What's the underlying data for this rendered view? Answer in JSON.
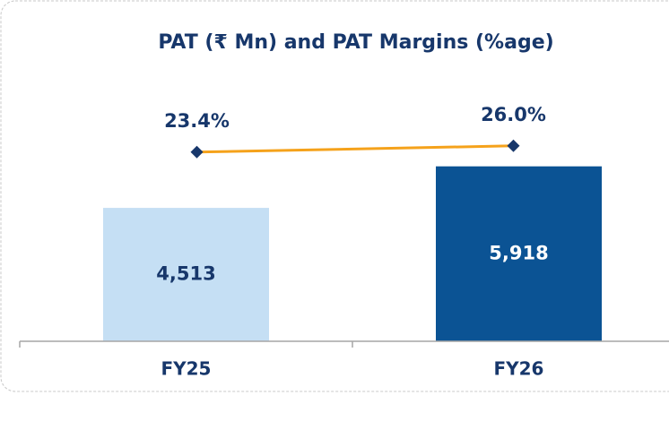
{
  "chart_data": {
    "type": "combo",
    "title": "PAT (₹ Mn) and PAT Margins (%age)",
    "categories": [
      "FY25",
      "FY26"
    ],
    "ylim": [
      0,
      8000
    ],
    "y2lim": [
      -55,
      43
    ],
    "series": [
      {
        "type": "bar",
        "colors": [
          "#c5dff4",
          "#0b5394"
        ],
        "label_colors": [
          "#17376b",
          "#ffffff"
        ],
        "values": [
          4513,
          5918
        ],
        "value_labels": [
          "4,513",
          "5,918"
        ]
      },
      {
        "type": "line",
        "axis": "y2",
        "color": "#f5a21b",
        "marker_color": "#17376b",
        "values": [
          23.4,
          26.0
        ],
        "value_labels": [
          "23.4%",
          "26.0%"
        ]
      }
    ]
  }
}
